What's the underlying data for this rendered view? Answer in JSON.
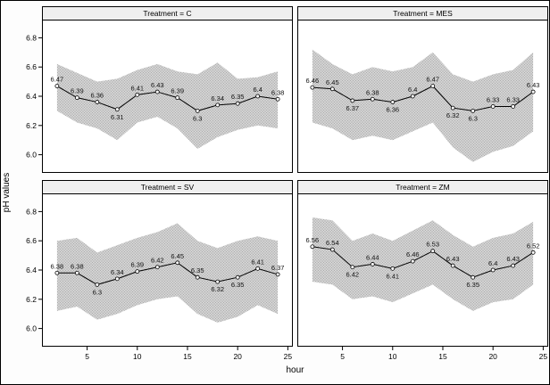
{
  "figure": {
    "background": "#fdfdfd",
    "border_color": "#000000"
  },
  "chart_data": {
    "type": "line",
    "title": "",
    "xlabel": "hour",
    "ylabel": "pH values",
    "legend": "none",
    "grid": "off",
    "x": [
      2,
      4,
      6,
      8,
      10,
      12,
      14,
      16,
      18,
      20,
      22,
      24
    ],
    "x_ticks": [
      5,
      10,
      15,
      20,
      25
    ],
    "y_ticks": [
      6.0,
      6.2,
      6.4,
      6.6,
      6.8
    ],
    "xlim": [
      0.5,
      25.5
    ],
    "ylim": [
      5.9,
      6.9
    ],
    "line_color": "#000000",
    "marker_fill": "#ffffff",
    "band_color": "#d6d6d6",
    "band_dot_color": "#999999",
    "panels": [
      {
        "strip_label": "Treatment = C",
        "values": [
          6.47,
          6.39,
          6.36,
          6.31,
          6.41,
          6.43,
          6.39,
          6.3,
          6.34,
          6.35,
          6.4,
          6.38
        ],
        "upper": [
          6.62,
          6.56,
          6.5,
          6.52,
          6.58,
          6.62,
          6.57,
          6.55,
          6.63,
          6.52,
          6.53,
          6.57
        ],
        "lower": [
          6.3,
          6.22,
          6.18,
          6.1,
          6.22,
          6.26,
          6.18,
          6.04,
          6.12,
          6.17,
          6.2,
          6.18
        ],
        "label_below_indices": [
          3,
          7
        ]
      },
      {
        "strip_label": "Treatment = MES",
        "values": [
          6.46,
          6.45,
          6.37,
          6.38,
          6.36,
          6.4,
          6.47,
          6.32,
          6.3,
          6.33,
          6.33,
          6.43
        ],
        "upper": [
          6.72,
          6.62,
          6.55,
          6.6,
          6.57,
          6.6,
          6.7,
          6.55,
          6.5,
          6.55,
          6.58,
          6.7
        ],
        "lower": [
          6.22,
          6.18,
          6.1,
          6.13,
          6.1,
          6.16,
          6.22,
          6.05,
          5.95,
          6.02,
          6.06,
          6.16
        ],
        "label_below_indices": [
          2,
          4,
          7,
          8
        ]
      },
      {
        "strip_label": "Treatment = SV",
        "values": [
          6.38,
          6.38,
          6.3,
          6.34,
          6.39,
          6.42,
          6.45,
          6.35,
          6.32,
          6.35,
          6.41,
          6.37
        ],
        "upper": [
          6.6,
          6.62,
          6.52,
          6.57,
          6.62,
          6.66,
          6.72,
          6.6,
          6.55,
          6.6,
          6.63,
          6.6
        ],
        "lower": [
          6.12,
          6.15,
          6.06,
          6.1,
          6.16,
          6.2,
          6.22,
          6.1,
          6.04,
          6.08,
          6.16,
          6.1
        ],
        "label_below_indices": [
          2,
          8,
          9
        ]
      },
      {
        "strip_label": "Treatment = ZM",
        "values": [
          6.56,
          6.54,
          6.42,
          6.44,
          6.41,
          6.46,
          6.53,
          6.43,
          6.35,
          6.4,
          6.43,
          6.52
        ],
        "upper": [
          6.76,
          6.74,
          6.6,
          6.65,
          6.6,
          6.67,
          6.74,
          6.64,
          6.56,
          6.62,
          6.65,
          6.73
        ],
        "lower": [
          6.32,
          6.3,
          6.2,
          6.22,
          6.18,
          6.24,
          6.3,
          6.2,
          6.12,
          6.18,
          6.2,
          6.3
        ],
        "label_below_indices": [
          2,
          4,
          8
        ]
      }
    ]
  }
}
